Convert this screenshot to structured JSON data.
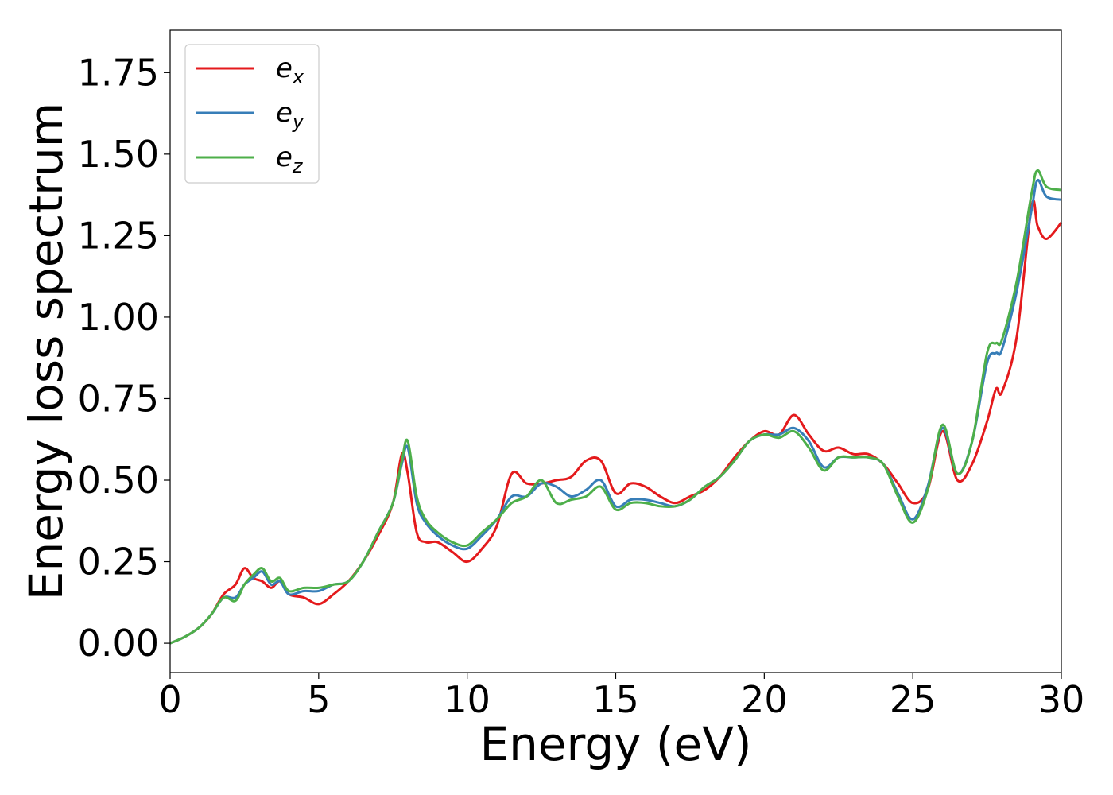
{
  "chart_data": {
    "type": "line",
    "title": "",
    "xlabel": "Energy (eV)",
    "ylabel": "Energy loss spectrum",
    "xlim": [
      0,
      30
    ],
    "ylim": [
      -0.09,
      1.88
    ],
    "xticks": [
      0,
      5,
      10,
      15,
      20,
      25,
      30
    ],
    "xtick_labels": [
      "0",
      "5",
      "10",
      "15",
      "20",
      "25",
      "30"
    ],
    "yticks": [
      0.0,
      0.25,
      0.5,
      0.75,
      1.0,
      1.25,
      1.5,
      1.75
    ],
    "ytick_labels": [
      "0.00",
      "0.25",
      "0.50",
      "0.75",
      "1.00",
      "1.25",
      "1.50",
      "1.75"
    ],
    "grid": false,
    "legend_position": "top-left",
    "series": [
      {
        "name": "e_x",
        "label_main": "e",
        "label_sub": "x",
        "color": "#e41a1c",
        "x": [
          0,
          0.5,
          1.0,
          1.4,
          1.8,
          2.2,
          2.5,
          2.8,
          3.1,
          3.4,
          3.7,
          4.0,
          4.5,
          5.0,
          5.5,
          6.0,
          6.5,
          7.0,
          7.5,
          7.8,
          8.0,
          8.3,
          8.6,
          9.0,
          9.5,
          10.0,
          10.5,
          11.0,
          11.5,
          12.0,
          12.5,
          13.0,
          13.5,
          14.0,
          14.5,
          15.0,
          15.5,
          16.0,
          16.5,
          17.0,
          17.5,
          18.0,
          18.5,
          19.0,
          19.5,
          20.0,
          20.5,
          21.0,
          21.5,
          22.0,
          22.5,
          23.0,
          23.5,
          24.0,
          24.5,
          25.0,
          25.5,
          26.0,
          26.5,
          27.0,
          27.5,
          27.8,
          28.0,
          28.5,
          29.0,
          29.2,
          29.5,
          30.0
        ],
        "y": [
          0.0,
          0.02,
          0.05,
          0.09,
          0.15,
          0.18,
          0.23,
          0.2,
          0.19,
          0.17,
          0.19,
          0.15,
          0.14,
          0.12,
          0.15,
          0.19,
          0.25,
          0.33,
          0.43,
          0.58,
          0.52,
          0.34,
          0.31,
          0.31,
          0.28,
          0.25,
          0.29,
          0.36,
          0.52,
          0.49,
          0.49,
          0.5,
          0.51,
          0.56,
          0.56,
          0.46,
          0.49,
          0.48,
          0.45,
          0.43,
          0.45,
          0.47,
          0.51,
          0.57,
          0.62,
          0.65,
          0.64,
          0.7,
          0.64,
          0.59,
          0.6,
          0.58,
          0.58,
          0.55,
          0.49,
          0.43,
          0.47,
          0.65,
          0.5,
          0.55,
          0.68,
          0.78,
          0.77,
          0.94,
          1.34,
          1.28,
          1.24,
          1.29
        ]
      },
      {
        "name": "e_y",
        "label_main": "e",
        "label_sub": "y",
        "color": "#377eb8",
        "x": [
          0,
          0.5,
          1.0,
          1.4,
          1.8,
          2.2,
          2.5,
          2.8,
          3.1,
          3.4,
          3.7,
          4.0,
          4.5,
          5.0,
          5.5,
          6.0,
          6.5,
          7.0,
          7.5,
          7.8,
          8.0,
          8.3,
          8.6,
          9.0,
          9.5,
          10.0,
          10.5,
          11.0,
          11.5,
          12.0,
          12.5,
          13.0,
          13.5,
          14.0,
          14.5,
          15.0,
          15.5,
          16.0,
          16.5,
          17.0,
          17.5,
          18.0,
          18.5,
          19.0,
          19.5,
          20.0,
          20.5,
          21.0,
          21.5,
          22.0,
          22.5,
          23.0,
          23.5,
          24.0,
          24.5,
          25.0,
          25.5,
          26.0,
          26.5,
          27.0,
          27.5,
          27.8,
          28.0,
          28.5,
          29.0,
          29.2,
          29.5,
          30.0
        ],
        "y": [
          0.0,
          0.02,
          0.05,
          0.09,
          0.14,
          0.14,
          0.18,
          0.2,
          0.22,
          0.18,
          0.19,
          0.15,
          0.16,
          0.16,
          0.18,
          0.19,
          0.25,
          0.34,
          0.43,
          0.55,
          0.6,
          0.43,
          0.37,
          0.33,
          0.3,
          0.29,
          0.33,
          0.38,
          0.45,
          0.45,
          0.49,
          0.48,
          0.45,
          0.47,
          0.5,
          0.42,
          0.44,
          0.44,
          0.43,
          0.42,
          0.44,
          0.48,
          0.51,
          0.56,
          0.62,
          0.64,
          0.64,
          0.66,
          0.62,
          0.54,
          0.57,
          0.57,
          0.57,
          0.55,
          0.46,
          0.38,
          0.48,
          0.66,
          0.52,
          0.62,
          0.86,
          0.89,
          0.9,
          1.08,
          1.33,
          1.42,
          1.37,
          1.36
        ]
      },
      {
        "name": "e_z",
        "label_main": "e",
        "label_sub": "z",
        "color": "#4daf4a",
        "x": [
          0,
          0.5,
          1.0,
          1.4,
          1.8,
          2.2,
          2.5,
          2.8,
          3.1,
          3.4,
          3.7,
          4.0,
          4.5,
          5.0,
          5.5,
          6.0,
          6.5,
          7.0,
          7.5,
          7.8,
          8.0,
          8.3,
          8.6,
          9.0,
          9.5,
          10.0,
          10.5,
          11.0,
          11.5,
          12.0,
          12.5,
          13.0,
          13.5,
          14.0,
          14.5,
          15.0,
          15.5,
          16.0,
          16.5,
          17.0,
          17.5,
          18.0,
          18.5,
          19.0,
          19.5,
          20.0,
          20.5,
          21.0,
          21.5,
          22.0,
          22.5,
          23.0,
          23.5,
          24.0,
          24.5,
          25.0,
          25.5,
          26.0,
          26.5,
          27.0,
          27.5,
          27.8,
          28.0,
          28.5,
          29.0,
          29.2,
          29.5,
          30.0
        ],
        "y": [
          0.0,
          0.02,
          0.05,
          0.09,
          0.14,
          0.13,
          0.18,
          0.21,
          0.23,
          0.19,
          0.2,
          0.16,
          0.17,
          0.17,
          0.18,
          0.19,
          0.25,
          0.34,
          0.43,
          0.56,
          0.62,
          0.45,
          0.38,
          0.34,
          0.31,
          0.3,
          0.34,
          0.38,
          0.43,
          0.45,
          0.5,
          0.43,
          0.44,
          0.45,
          0.48,
          0.41,
          0.43,
          0.43,
          0.42,
          0.42,
          0.44,
          0.48,
          0.51,
          0.56,
          0.62,
          0.64,
          0.63,
          0.65,
          0.6,
          0.53,
          0.57,
          0.57,
          0.57,
          0.55,
          0.45,
          0.37,
          0.47,
          0.67,
          0.52,
          0.62,
          0.89,
          0.92,
          0.93,
          1.11,
          1.38,
          1.45,
          1.4,
          1.39
        ]
      }
    ]
  }
}
